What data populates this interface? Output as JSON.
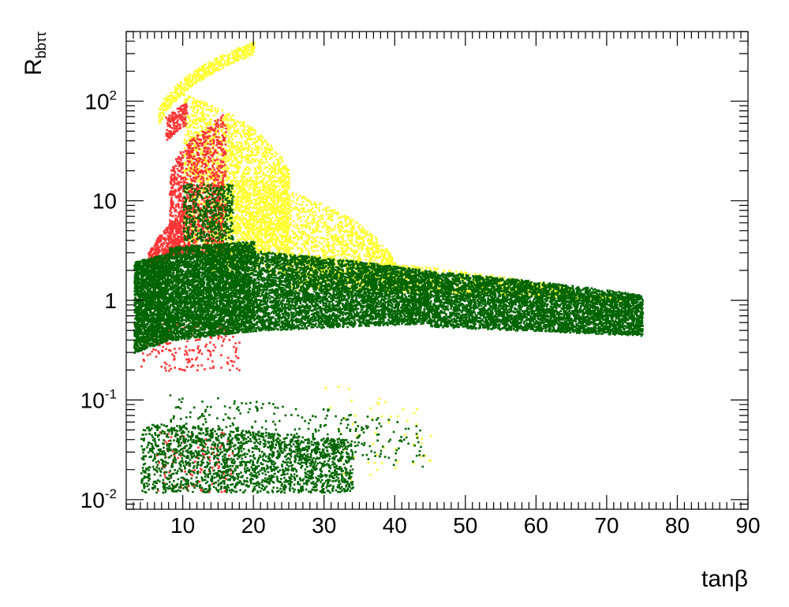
{
  "chart_data": {
    "type": "scatter",
    "title": "",
    "xlabel": "tanβ",
    "ylabel": {
      "main": "R",
      "sub": "bbττ"
    },
    "xlim": [
      2,
      90
    ],
    "ylim": [
      0.008,
      500
    ],
    "yscale": "log",
    "grid": false,
    "legend": "none",
    "x_ticks": [
      {
        "value": 10,
        "label": "10"
      },
      {
        "value": 20,
        "label": "20"
      },
      {
        "value": 30,
        "label": "30"
      },
      {
        "value": 40,
        "label": "40"
      },
      {
        "value": 50,
        "label": "50"
      },
      {
        "value": 60,
        "label": "60"
      },
      {
        "value": 70,
        "label": "70"
      },
      {
        "value": 80,
        "label": "80"
      },
      {
        "value": 90,
        "label": "90"
      }
    ],
    "y_ticks": [
      {
        "value": 0.01,
        "base": "10",
        "exp": "-2"
      },
      {
        "value": 0.1,
        "base": "10",
        "exp": "-1"
      },
      {
        "value": 1,
        "base": "1",
        "exp": ""
      },
      {
        "value": 10,
        "base": "10",
        "exp": ""
      },
      {
        "value": 100,
        "base": "10",
        "exp": "2"
      }
    ],
    "series": [
      {
        "color": "#ffff33",
        "regions": [
          {
            "x": [
              6.5,
              20
            ],
            "ylo": [
              60,
              300
            ],
            "yhi": [
              90,
              400
            ],
            "n": 500
          },
          {
            "x": [
              10,
              25
            ],
            "ylo": [
              3,
              3
            ],
            "yhi": [
              120,
              20
            ],
            "n": 2600
          },
          {
            "x": [
              14,
              40
            ],
            "ylo": [
              2,
              1.6
            ],
            "yhi": [
              20,
              2.5
            ],
            "n": 2000
          },
          {
            "x": [
              25,
              65
            ],
            "ylo": [
              1.3,
              1.1
            ],
            "yhi": [
              3,
              1.35
            ],
            "n": 1500
          },
          {
            "x": [
              65,
              73
            ],
            "ylo": [
              1.0,
              1.0
            ],
            "yhi": [
              1.2,
              1.05
            ],
            "n": 150
          },
          {
            "x": [
              30,
              45
            ],
            "ylo": [
              0.015,
              0.015
            ],
            "yhi": [
              0.15,
              0.08
            ],
            "n": 60
          }
        ]
      },
      {
        "color": "#ff3333",
        "regions": [
          {
            "x": [
              7.5,
              10.5
            ],
            "ylo": [
              40,
              60
            ],
            "yhi": [
              70,
              100
            ],
            "n": 160
          },
          {
            "x": [
              8,
              16
            ],
            "ylo": [
              3,
              3
            ],
            "yhi": [
              20,
              80
            ],
            "n": 1200
          },
          {
            "x": [
              5,
              10
            ],
            "ylo": [
              2.2,
              3
            ],
            "yhi": [
              3,
              8
            ],
            "n": 400
          },
          {
            "x": [
              4,
              18
            ],
            "ylo": [
              0.2,
              0.2
            ],
            "yhi": [
              0.6,
              0.6
            ],
            "n": 200
          },
          {
            "x": [
              6,
              17
            ],
            "ylo": [
              0.012,
              0.012
            ],
            "yhi": [
              0.05,
              0.05
            ],
            "n": 120
          }
        ]
      },
      {
        "color": "#006400",
        "regions": [
          {
            "x": [
              3,
              8
            ],
            "ylo": [
              0.3,
              0.4
            ],
            "yhi": [
              2.5,
              3
            ],
            "n": 2200
          },
          {
            "x": [
              8,
              20
            ],
            "ylo": [
              0.4,
              0.5
            ],
            "yhi": [
              3.5,
              4
            ],
            "n": 4500
          },
          {
            "x": [
              20,
              45
            ],
            "ylo": [
              0.5,
              0.6
            ],
            "yhi": [
              3.2,
              2
            ],
            "n": 5000
          },
          {
            "x": [
              45,
              75
            ],
            "ylo": [
              0.55,
              0.45
            ],
            "yhi": [
              2,
              1.15
            ],
            "n": 5000
          },
          {
            "x": [
              10,
              17
            ],
            "ylo": [
              4,
              4
            ],
            "yhi": [
              15,
              15
            ],
            "n": 500
          },
          {
            "x": [
              4,
              34
            ],
            "ylo": [
              0.012,
              0.012
            ],
            "yhi": [
              0.06,
              0.04
            ],
            "n": 2000
          },
          {
            "x": [
              8,
              44
            ],
            "ylo": [
              0.04,
              0.02
            ],
            "yhi": [
              0.12,
              0.06
            ],
            "n": 300
          }
        ]
      }
    ]
  }
}
